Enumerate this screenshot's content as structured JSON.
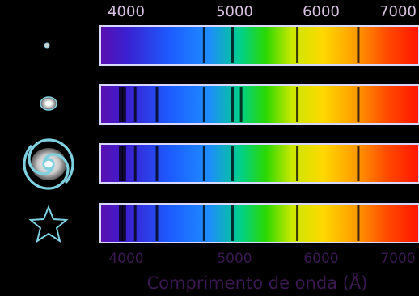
{
  "top_axis": {
    "ticks": [
      {
        "value": 4000,
        "label": "4000"
      },
      {
        "value": 5000,
        "label": "5000"
      },
      {
        "value": 6000,
        "label": "6000"
      },
      {
        "value": 7000,
        "label": "7000"
      }
    ]
  },
  "bottom_axis": {
    "ticks": [
      {
        "value": 4000,
        "label": "4000"
      },
      {
        "value": 5000,
        "label": "5000"
      },
      {
        "value": 6000,
        "label": "6000"
      },
      {
        "value": 7000,
        "label": "7000"
      }
    ],
    "title": "Comprimento de onda (Å)"
  },
  "colors": {
    "background": "#000000",
    "top_label": "#d8c0e0",
    "bottom_label": "#3a1850",
    "icon_outline": "#7fd0e0"
  },
  "spectra": [
    {
      "icon": "small-dot-galaxy-icon",
      "lines": [
        4861,
        5175,
        5890,
        6563
      ]
    },
    {
      "icon": "elliptical-galaxy-icon",
      "lines": [
        3968,
        3934,
        4101,
        4340,
        4861,
        5175,
        5270,
        5890,
        6563
      ]
    },
    {
      "icon": "spiral-galaxy-icon",
      "lines": [
        3934,
        3968,
        4101,
        4340,
        4861,
        5175,
        5890,
        6563
      ]
    },
    {
      "icon": "star-icon",
      "lines": [
        3934,
        3968,
        4101,
        4340,
        4861,
        5175,
        5890,
        6563
      ]
    }
  ]
}
